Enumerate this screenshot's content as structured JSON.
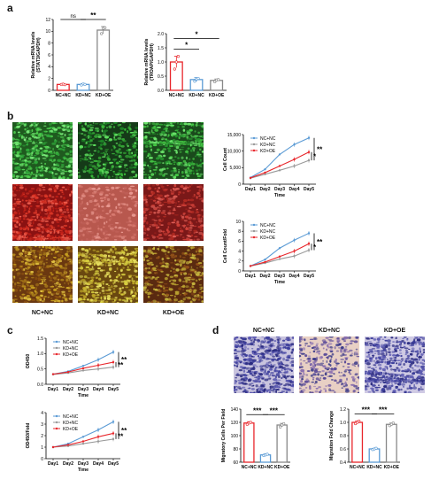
{
  "panels": {
    "a": "a",
    "b": "b",
    "c": "c",
    "d": "d"
  },
  "panel_a": {
    "chart_data": [
      {
        "type": "bar",
        "ylabel": "Relative mRNA levels\n(STAT3/GAPDH)",
        "categories": [
          "NC+NC",
          "KD+NC",
          "KD+OE"
        ],
        "values": [
          1.0,
          1.0,
          10.2
        ],
        "errors": [
          0.1,
          0.15,
          0.6
        ],
        "points": [
          [
            1.0,
            1.05,
            0.95
          ],
          [
            0.9,
            1.1,
            1.0
          ],
          [
            9.6,
            10.5,
            10.6
          ]
        ],
        "yticks": [
          0,
          2,
          4,
          6,
          8,
          10,
          12
        ],
        "ylim": [
          0,
          12
        ],
        "colors": [
          "#e8262b",
          "#5b9bd5",
          "#888888"
        ],
        "annotations": [
          {
            "from": 0,
            "to": 1,
            "text": "ns"
          },
          {
            "from": 1,
            "to": 2,
            "text": "**"
          }
        ]
      },
      {
        "type": "bar",
        "ylabel": "Relative mRNA levels\n(TROAP/GAPDH)",
        "categories": [
          "NC+NC",
          "KD+NC",
          "KD+OE"
        ],
        "values": [
          1.0,
          0.38,
          0.35
        ],
        "errors": [
          0.2,
          0.07,
          0.05
        ],
        "points": [
          [
            0.75,
            1.0,
            1.2
          ],
          [
            0.32,
            0.4,
            0.42
          ],
          [
            0.3,
            0.36,
            0.38
          ]
        ],
        "yticks": [
          0.0,
          0.5,
          1.0,
          1.5,
          2.0
        ],
        "ylim": [
          0,
          2.0
        ],
        "colors": [
          "#e8262b",
          "#5b9bd5",
          "#888888"
        ],
        "annotations": [
          {
            "from": 0,
            "to": 1,
            "text": "*"
          },
          {
            "from": 0,
            "to": 2,
            "text": "*"
          }
        ]
      }
    ]
  },
  "panel_b": {
    "image_labels": [
      "NC+NC",
      "KD+NC",
      "KD+OE"
    ],
    "chart_data": [
      {
        "type": "line",
        "ylabel": "Cell Count",
        "xlabel": "Time",
        "x": [
          "Day1",
          "Day2",
          "Day3",
          "Day4",
          "Day5"
        ],
        "yticks": [
          "0",
          "5,000",
          "10,000",
          "15,000"
        ],
        "ylim": [
          0,
          15000
        ],
        "series": [
          {
            "name": "NC+NC",
            "values": [
              2000,
              4500,
              9000,
              12000,
              14000
            ],
            "color": "#5b9bd5"
          },
          {
            "name": "KD+NC",
            "values": [
              1800,
              3000,
              4200,
              5500,
              7200
            ],
            "color": "#999999"
          },
          {
            "name": "KD+OE",
            "values": [
              1900,
              3500,
              5500,
              7500,
              9700
            ],
            "color": "#e8262b"
          }
        ],
        "sig": [
          "*",
          "**"
        ]
      },
      {
        "type": "line",
        "ylabel": "Cell Count/Fold",
        "xlabel": "Time",
        "x": [
          "Day1",
          "Day2",
          "Day3",
          "Day4",
          "Day5"
        ],
        "yticks": [
          "0",
          "2",
          "4",
          "6",
          "8",
          "10"
        ],
        "ylim": [
          0,
          10
        ],
        "series": [
          {
            "name": "NC+NC",
            "values": [
              1.0,
              2.3,
              4.6,
              6.2,
              7.6
            ],
            "color": "#5b9bd5"
          },
          {
            "name": "KD+NC",
            "values": [
              1.0,
              1.6,
              2.4,
              3.0,
              4.2
            ],
            "color": "#999999"
          },
          {
            "name": "KD+OE",
            "values": [
              1.0,
              1.8,
              2.9,
              4.0,
              5.5
            ],
            "color": "#e8262b"
          }
        ],
        "sig": [
          "*",
          "**"
        ]
      }
    ]
  },
  "panel_c": {
    "chart_data": [
      {
        "type": "line",
        "ylabel": "OD450",
        "xlabel": "Time",
        "x": [
          "Day1",
          "Day2",
          "Day3",
          "Day4",
          "Day5"
        ],
        "yticks": [
          "0.0",
          "0.5",
          "1.0",
          "1.5"
        ],
        "ylim": [
          0,
          1.5
        ],
        "series": [
          {
            "name": "NC+NC",
            "values": [
              0.33,
              0.42,
              0.6,
              0.8,
              1.05
            ],
            "color": "#5b9bd5"
          },
          {
            "name": "KD+NC",
            "values": [
              0.32,
              0.37,
              0.45,
              0.5,
              0.56
            ],
            "color": "#999999"
          },
          {
            "name": "KD+OE",
            "values": [
              0.33,
              0.4,
              0.52,
              0.62,
              0.72
            ],
            "color": "#e8262b"
          }
        ],
        "sig": [
          "**",
          "**"
        ]
      },
      {
        "type": "line",
        "ylabel": "OD450/Fold",
        "xlabel": "Time",
        "x": [
          "Day1",
          "Day2",
          "Day3",
          "Day4",
          "Day5"
        ],
        "yticks": [
          "0",
          "1",
          "2",
          "3",
          "4"
        ],
        "ylim": [
          0,
          4
        ],
        "series": [
          {
            "name": "NC+NC",
            "values": [
              1.0,
              1.3,
              1.9,
              2.5,
              3.2
            ],
            "color": "#5b9bd5"
          },
          {
            "name": "KD+NC",
            "values": [
              1.0,
              1.1,
              1.3,
              1.5,
              1.7
            ],
            "color": "#999999"
          },
          {
            "name": "KD+OE",
            "values": [
              1.0,
              1.2,
              1.5,
              1.9,
              2.2
            ],
            "color": "#e8262b"
          }
        ],
        "sig": [
          "**",
          "**"
        ]
      }
    ]
  },
  "panel_d": {
    "image_labels": [
      "NC+NC",
      "KD+NC",
      "KD+OE"
    ],
    "chart_data": [
      {
        "type": "bar",
        "ylabel": "Migratory Cells Per Field",
        "categories": [
          "NC+NC",
          "KD+NC",
          "KD+OE"
        ],
        "values": [
          119,
          71,
          116
        ],
        "errors": [
          2,
          1.5,
          2.5
        ],
        "points": [
          [
            117,
            119,
            120
          ],
          [
            70,
            71,
            72
          ],
          [
            113,
            116,
            118
          ]
        ],
        "yticks": [
          60,
          80,
          100,
          120,
          140
        ],
        "ylim": [
          60,
          140
        ],
        "colors": [
          "#e8262b",
          "#5b9bd5",
          "#888888"
        ],
        "annotations": [
          {
            "from": 0,
            "to": 1,
            "text": "***"
          },
          {
            "from": 1,
            "to": 2,
            "text": "***"
          }
        ]
      },
      {
        "type": "bar",
        "ylabel": "Migration Fold Change",
        "categories": [
          "NC+NC",
          "KD+NC",
          "KD+OE"
        ],
        "values": [
          1.0,
          0.6,
          0.97
        ],
        "errors": [
          0.02,
          0.01,
          0.02
        ],
        "points": [
          [
            0.98,
            1.0,
            1.02
          ],
          [
            0.59,
            0.6,
            0.61
          ],
          [
            0.95,
            0.97,
            0.99
          ]
        ],
        "yticks": [
          0.4,
          0.6,
          0.8,
          1.0,
          1.2
        ],
        "ylim": [
          0.4,
          1.2
        ],
        "colors": [
          "#e8262b",
          "#5b9bd5",
          "#888888"
        ],
        "annotations": [
          {
            "from": 0,
            "to": 1,
            "text": "***"
          },
          {
            "from": 1,
            "to": 2,
            "text": "***"
          }
        ]
      }
    ]
  }
}
